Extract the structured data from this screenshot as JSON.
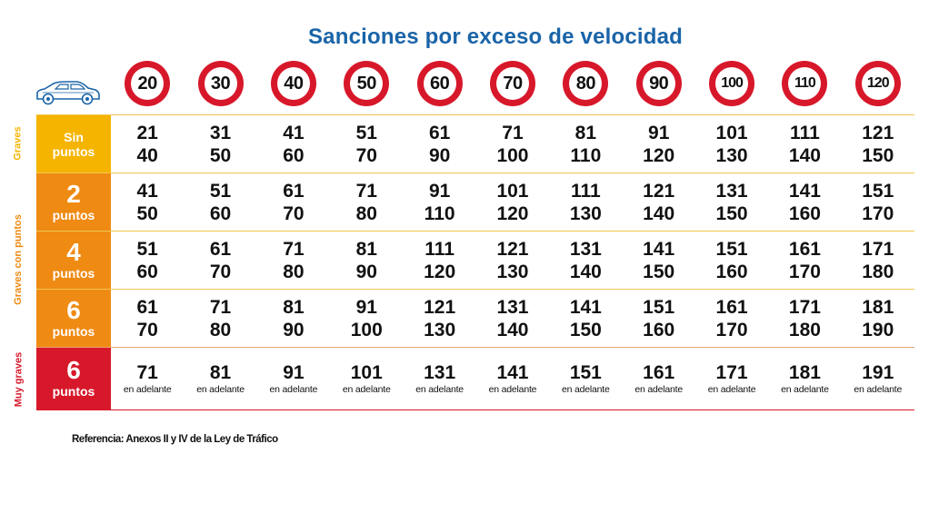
{
  "title": "Sanciones por exceso de velocidad",
  "icons": {
    "car": "car-icon"
  },
  "speed_limits": [
    "20",
    "30",
    "40",
    "50",
    "60",
    "70",
    "80",
    "90",
    "100",
    "110",
    "120"
  ],
  "categories": [
    {
      "label": "Graves",
      "color": "#f5b400"
    },
    {
      "label": "Graves con puntos",
      "color": "#ef8a12"
    },
    {
      "label": "Muy graves",
      "color": "#d7182a"
    }
  ],
  "rows": [
    {
      "points_big": "",
      "points_line1": "Sin",
      "points_line2": "puntos",
      "color": "#f5b400",
      "low": [
        "21",
        "31",
        "41",
        "51",
        "61",
        "71",
        "81",
        "91",
        "101",
        "111",
        "121"
      ],
      "high": [
        "40",
        "50",
        "60",
        "70",
        "90",
        "100",
        "110",
        "120",
        "130",
        "140",
        "150"
      ]
    },
    {
      "points_big": "2",
      "points_line1": "",
      "points_line2": "puntos",
      "color": "#ef8a12",
      "low": [
        "41",
        "51",
        "61",
        "71",
        "91",
        "101",
        "111",
        "121",
        "131",
        "141",
        "151"
      ],
      "high": [
        "50",
        "60",
        "70",
        "80",
        "110",
        "120",
        "130",
        "140",
        "150",
        "160",
        "170"
      ]
    },
    {
      "points_big": "4",
      "points_line1": "",
      "points_line2": "puntos",
      "color": "#ef8a12",
      "low": [
        "51",
        "61",
        "71",
        "81",
        "111",
        "121",
        "131",
        "141",
        "151",
        "161",
        "171"
      ],
      "high": [
        "60",
        "70",
        "80",
        "90",
        "120",
        "130",
        "140",
        "150",
        "160",
        "170",
        "180"
      ]
    },
    {
      "points_big": "6",
      "points_line1": "",
      "points_line2": "puntos",
      "color": "#ef8a12",
      "low": [
        "61",
        "71",
        "81",
        "91",
        "121",
        "131",
        "141",
        "151",
        "161",
        "171",
        "181"
      ],
      "high": [
        "70",
        "80",
        "90",
        "100",
        "130",
        "140",
        "150",
        "160",
        "170",
        "180",
        "190"
      ]
    },
    {
      "points_big": "6",
      "points_line1": "",
      "points_line2": "puntos",
      "color": "#d7182a",
      "low": [
        "71",
        "81",
        "91",
        "101",
        "131",
        "141",
        "151",
        "161",
        "171",
        "181",
        "191"
      ],
      "suffix": "en adelante"
    }
  ],
  "reference": "Referencia: Anexos II y IV de la Ley de Tráfico"
}
